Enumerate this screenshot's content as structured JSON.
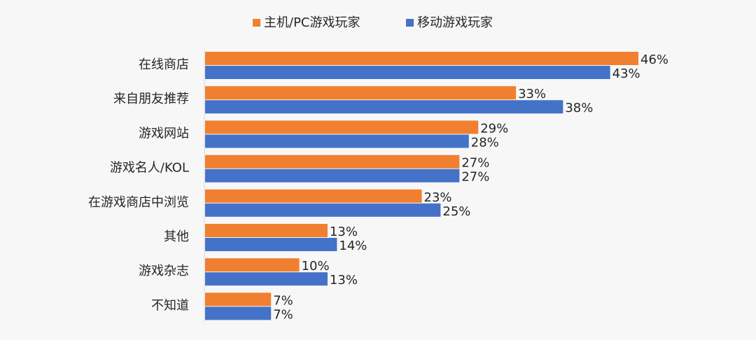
{
  "chart_data": {
    "type": "bar",
    "orientation": "horizontal",
    "categories": [
      "在线商店",
      "来自朋友推荐",
      "游戏网站",
      "游戏名人/KOL",
      "在游戏商店中浏览",
      "其他",
      "游戏杂志",
      "不知道"
    ],
    "series": [
      {
        "name": "主机/PC游戏玩家",
        "color": "#F07F2F",
        "values": [
          46,
          33,
          29,
          27,
          23,
          13,
          10,
          7
        ],
        "labels": [
          "46%",
          "33%",
          "29%",
          "27%",
          "23%",
          "13%",
          "10%",
          "7%"
        ]
      },
      {
        "name": "移动游戏玩家",
        "color": "#4472C9",
        "values": [
          43,
          38,
          28,
          27,
          25,
          14,
          13,
          7
        ],
        "labels": [
          "43%",
          "38%",
          "28%",
          "27%",
          "25%",
          "14%",
          "13%",
          "7%"
        ]
      }
    ],
    "xlim": [
      0,
      46
    ],
    "unit": "%",
    "legend_position": "top-center",
    "grid": false
  },
  "colors": {
    "background": "#f7f7f7",
    "axis": "#d9d9d9",
    "text": "#262626"
  }
}
